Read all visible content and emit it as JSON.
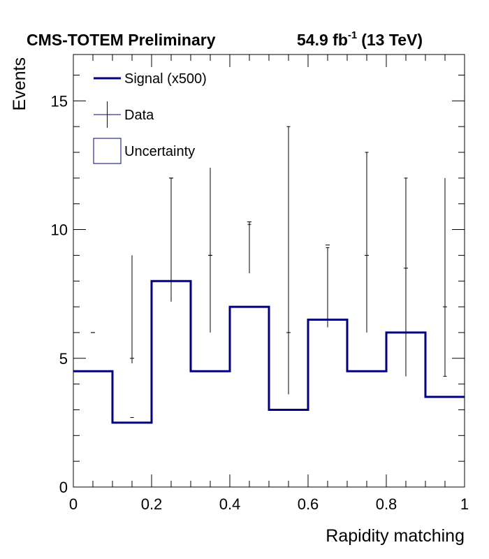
{
  "chart_data": {
    "type": "histogram",
    "header_left": "CMS-TOTEM Preliminary",
    "lumi": {
      "value": "54.9 fb",
      "exp": "-1",
      "energy": "(13 TeV)"
    },
    "xlabel": "Rapidity matching",
    "ylabel": "Events",
    "xlim": [
      0,
      1
    ],
    "ylim": [
      0,
      16.8
    ],
    "x_major_ticks": [
      0,
      0.2,
      0.4,
      0.6,
      0.8,
      1
    ],
    "x_tick_labels": [
      "0",
      "0.2",
      "0.4",
      "0.6",
      "0.8",
      "1"
    ],
    "y_major_ticks": [
      0,
      5,
      10,
      15
    ],
    "y_tick_labels": [
      "0",
      "5",
      "10",
      "15"
    ],
    "bin_edges": [
      0,
      0.1,
      0.2,
      0.3,
      0.4,
      0.5,
      0.6,
      0.7,
      0.8,
      0.9,
      1.0
    ],
    "colors": {
      "signal": "#00007f",
      "data": "#00007f",
      "uncertainty": "#000080",
      "axis": "#000000"
    },
    "legend": {
      "placement": "top-left",
      "entries": [
        {
          "label": "Signal (x500)",
          "style": "line"
        },
        {
          "label": "Data",
          "style": "errorbar"
        },
        {
          "label": "Uncertainty",
          "style": "box"
        }
      ]
    },
    "series": [
      {
        "name": "Signal (x500)",
        "style": "step",
        "values": [
          4.5,
          2.5,
          8.0,
          4.5,
          7.0,
          3.0,
          6.5,
          4.5,
          6.0,
          3.5
        ]
      },
      {
        "name": "Data",
        "style": "errorbar",
        "x": [
          0.05,
          0.15,
          0.25,
          0.35,
          0.45,
          0.55,
          0.65,
          0.75,
          0.85,
          0.95
        ],
        "values": [
          6.0,
          5.0,
          12.0,
          9.0,
          10.3,
          6.0,
          9.4,
          9.0,
          8.5,
          7.0
        ],
        "errors": [
          0,
          0,
          0,
          0,
          0,
          0,
          0,
          0,
          0,
          0
        ]
      },
      {
        "name": "Uncertainty",
        "style": "band",
        "x": [
          0.05,
          0.15,
          0.25,
          0.35,
          0.45,
          0.55,
          0.65,
          0.75,
          0.85,
          0.95
        ],
        "low": [
          6.0,
          4.8,
          7.2,
          6.0,
          8.3,
          3.6,
          6.2,
          6.0,
          4.3,
          4.3
        ],
        "high": [
          6.0,
          9.0,
          12.0,
          12.4,
          10.3,
          14.0,
          9.3,
          13.0,
          12.0,
          12.0
        ],
        "markers": [
          6.0,
          2.7,
          12.0,
          9.0,
          10.2,
          14.0,
          9.3,
          13.0,
          12.0,
          4.3
        ]
      }
    ]
  }
}
